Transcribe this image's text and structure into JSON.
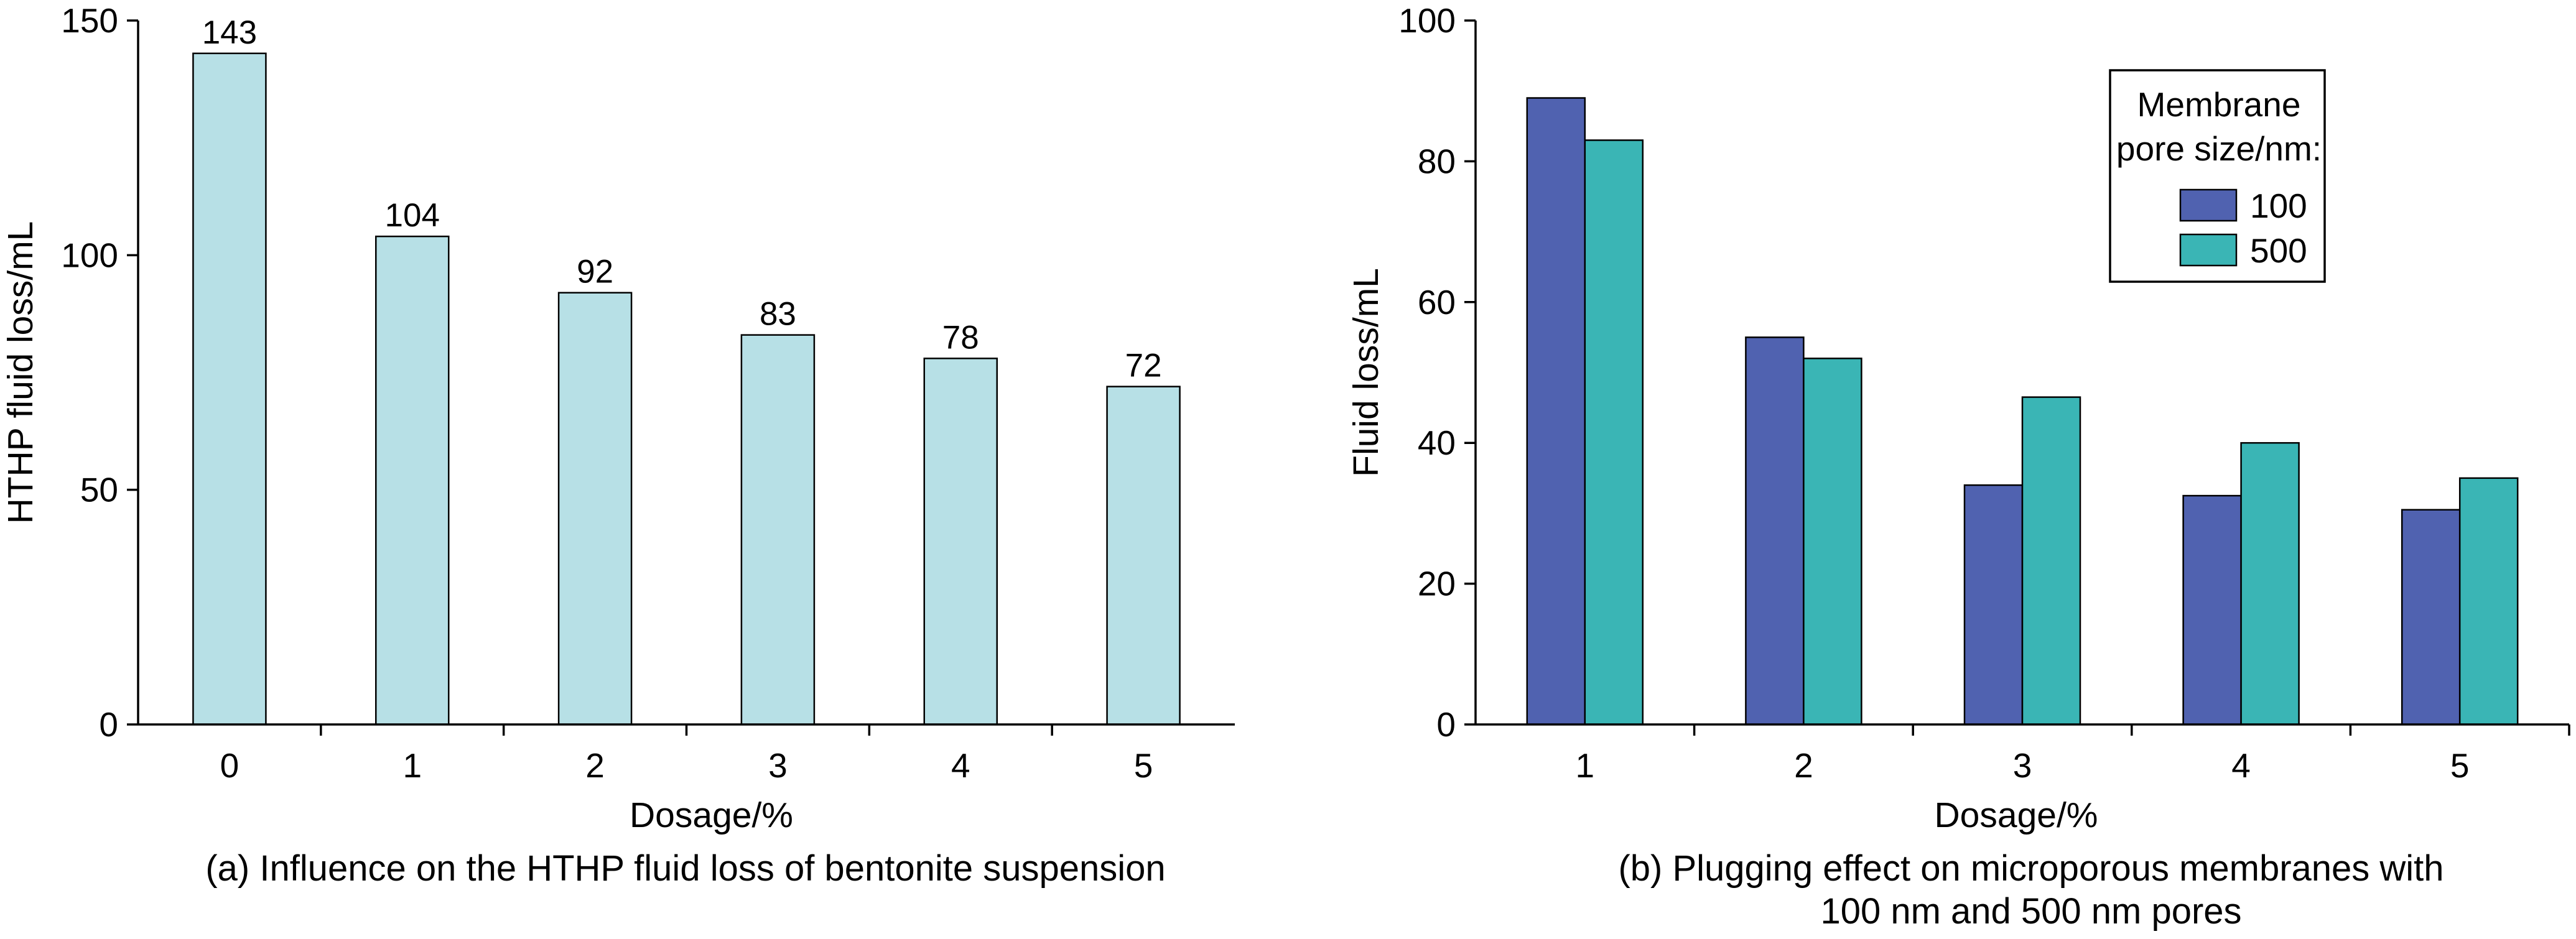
{
  "chart_data": [
    {
      "type": "bar",
      "categories": [
        "0",
        "1",
        "2",
        "3",
        "4",
        "5"
      ],
      "values": [
        143,
        104,
        92,
        83,
        78,
        72
      ],
      "data_labels": [
        "143",
        "104",
        "92",
        "83",
        "78",
        "72"
      ],
      "xlabel": "Dosage/%",
      "ylabel": "HTHP fluid loss/mL",
      "ylim": [
        0,
        150
      ],
      "yticks": [
        "0",
        "50",
        "100",
        "150"
      ],
      "caption": "(a) Influence on the HTHP fluid loss of bentonite suspension",
      "colors": [
        "#b7e0e6"
      ],
      "grid": false
    },
    {
      "type": "bar",
      "categories": [
        "1",
        "2",
        "3",
        "4",
        "5"
      ],
      "series": [
        {
          "name": "100",
          "values": [
            89,
            55,
            34,
            32.5,
            30.5
          ]
        },
        {
          "name": "500",
          "values": [
            83,
            52,
            46.5,
            40,
            35
          ]
        }
      ],
      "xlabel": "Dosage/%",
      "ylabel": "Fluid loss/mL",
      "ylim": [
        0,
        100
      ],
      "yticks": [
        "0",
        "20",
        "40",
        "60",
        "80",
        "100"
      ],
      "legend_title": [
        "Membrane",
        "pore size/nm:"
      ],
      "legend_position": "top-right",
      "caption": [
        "(b) Plugging effect on microporous membranes with",
        "100 nm and 500 nm pores"
      ],
      "colors": [
        "#5062b0",
        "#3ab5b5"
      ],
      "grid": false
    }
  ]
}
